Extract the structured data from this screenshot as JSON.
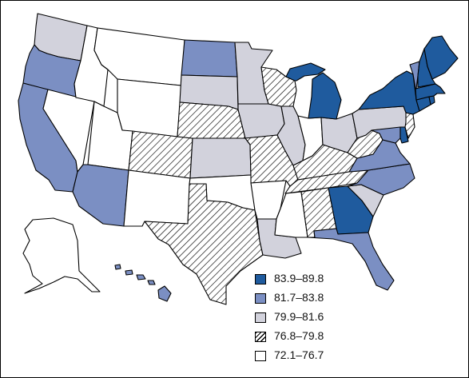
{
  "legend": {
    "items": [
      {
        "label": "83.9–89.8",
        "class": "c1",
        "color": "#1f5b9e"
      },
      {
        "label": "81.7–83.8",
        "class": "c2",
        "color": "#7b8fc3"
      },
      {
        "label": "79.9–81.6",
        "class": "c3",
        "color": "#d2d2dc"
      },
      {
        "label": "76.8–79.8",
        "class": "c4",
        "color": "hatched"
      },
      {
        "label": "72.1–76.7",
        "class": "c5",
        "color": "#ffffff"
      }
    ]
  },
  "states": {
    "ME": 1,
    "NH": 1,
    "VT": 2,
    "MA": 1,
    "RI": 1,
    "CT": 1,
    "NY": 1,
    "NJ": 4,
    "PA": 3,
    "DE": 1,
    "MD": 2,
    "MI": 1,
    "GA": 1,
    "ND": 2,
    "OR": 2,
    "CA": 2,
    "AZ": 2,
    "VA": 2,
    "NC": 2,
    "FL": 2,
    "HI": 2,
    "WA": 3,
    "MN": 3,
    "SD": 3,
    "IA": 3,
    "IL": 3,
    "KS": 3,
    "OH": 3,
    "SC": 3,
    "LA": 3,
    "WI": 4,
    "CO": 4,
    "NE": 4,
    "MO": 4,
    "TX": 4,
    "KY": 4,
    "TN": 4,
    "AL": 4,
    "WV": 4,
    "MT": 5,
    "ID": 5,
    "WY": 5,
    "NV": 5,
    "UT": 5,
    "NM": 5,
    "OK": 5,
    "AR": 5,
    "MS": 5,
    "IN": 5,
    "AK": 5
  }
}
